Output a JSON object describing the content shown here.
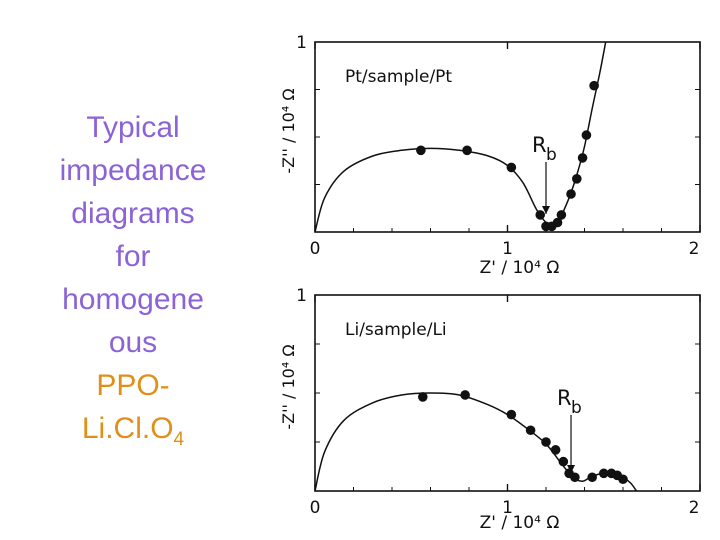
{
  "caption": {
    "lines": [
      "Typical",
      "impedance",
      "diagrams",
      "for",
      "homogene",
      "ous"
    ],
    "compound_line": "PPO-",
    "compound_base": "Li.Cl.O",
    "compound_sub": "4",
    "text_color": "#8b63d6",
    "compound_color": "#e0901a"
  },
  "chart_data": [
    {
      "type": "scatter",
      "title": "Pt/sample/Pt",
      "xlabel": "Z' / 10⁴ Ω",
      "ylabel": "-Z'' / 10⁴ Ω",
      "xlim": [
        0,
        2
      ],
      "ylim": [
        0,
        1
      ],
      "x_ticks": [
        "0",
        "1",
        "2"
      ],
      "y_ticks": [
        "1"
      ],
      "annotation": {
        "label": "R",
        "subscript": "b",
        "x": 1.2
      },
      "series": [
        {
          "points": [
            [
              0.55,
              0.43
            ],
            [
              0.79,
              0.43
            ],
            [
              1.02,
              0.34
            ],
            [
              1.17,
              0.09
            ],
            [
              1.2,
              0.03
            ],
            [
              1.23,
              0.03
            ],
            [
              1.26,
              0.05
            ],
            [
              1.28,
              0.09
            ],
            [
              1.33,
              0.2
            ],
            [
              1.36,
              0.28
            ],
            [
              1.39,
              0.39
            ],
            [
              1.41,
              0.51
            ],
            [
              1.45,
              0.77
            ]
          ],
          "fit_curve": [
            [
              0,
              0
            ],
            [
              0.05,
              0.18
            ],
            [
              0.15,
              0.32
            ],
            [
              0.3,
              0.4
            ],
            [
              0.45,
              0.43
            ],
            [
              0.6,
              0.44
            ],
            [
              0.75,
              0.43
            ],
            [
              0.9,
              0.4
            ],
            [
              1.0,
              0.35
            ],
            [
              1.08,
              0.26
            ],
            [
              1.15,
              0.12
            ],
            [
              1.2,
              0.05
            ],
            [
              1.23,
              0.04
            ],
            [
              1.27,
              0.07
            ],
            [
              1.32,
              0.18
            ],
            [
              1.36,
              0.3
            ],
            [
              1.4,
              0.45
            ],
            [
              1.44,
              0.65
            ],
            [
              1.48,
              0.84
            ],
            [
              1.51,
              1.0
            ]
          ]
        }
      ]
    },
    {
      "type": "scatter",
      "title": "Li/sample/Li",
      "xlabel": "Z' / 10⁴ Ω",
      "ylabel": "-Z'' / 10⁴ Ω",
      "xlim": [
        0,
        2
      ],
      "ylim": [
        0,
        1
      ],
      "x_ticks": [
        "0",
        "1",
        "2"
      ],
      "y_ticks": [
        "1"
      ],
      "annotation": {
        "label": "R",
        "subscript": "b",
        "x": 1.33
      },
      "series": [
        {
          "points": [
            [
              0.56,
              0.48
            ],
            [
              0.78,
              0.49
            ],
            [
              1.02,
              0.39
            ],
            [
              1.12,
              0.31
            ],
            [
              1.2,
              0.25
            ],
            [
              1.25,
              0.21
            ],
            [
              1.29,
              0.15
            ],
            [
              1.32,
              0.09
            ],
            [
              1.35,
              0.07
            ],
            [
              1.44,
              0.07
            ],
            [
              1.5,
              0.09
            ],
            [
              1.54,
              0.09
            ],
            [
              1.57,
              0.08
            ],
            [
              1.6,
              0.06
            ]
          ],
          "fit_curve": [
            [
              0,
              0
            ],
            [
              0.05,
              0.2
            ],
            [
              0.15,
              0.36
            ],
            [
              0.3,
              0.45
            ],
            [
              0.45,
              0.49
            ],
            [
              0.6,
              0.5
            ],
            [
              0.75,
              0.49
            ],
            [
              0.9,
              0.44
            ],
            [
              1.0,
              0.39
            ],
            [
              1.1,
              0.32
            ],
            [
              1.2,
              0.24
            ],
            [
              1.28,
              0.14
            ],
            [
              1.34,
              0.07
            ],
            [
              1.39,
              0.05
            ],
            [
              1.43,
              0.07
            ],
            [
              1.49,
              0.09
            ],
            [
              1.55,
              0.09
            ],
            [
              1.6,
              0.07
            ],
            [
              1.64,
              0.04
            ],
            [
              1.67,
              0.0
            ]
          ]
        }
      ]
    }
  ]
}
